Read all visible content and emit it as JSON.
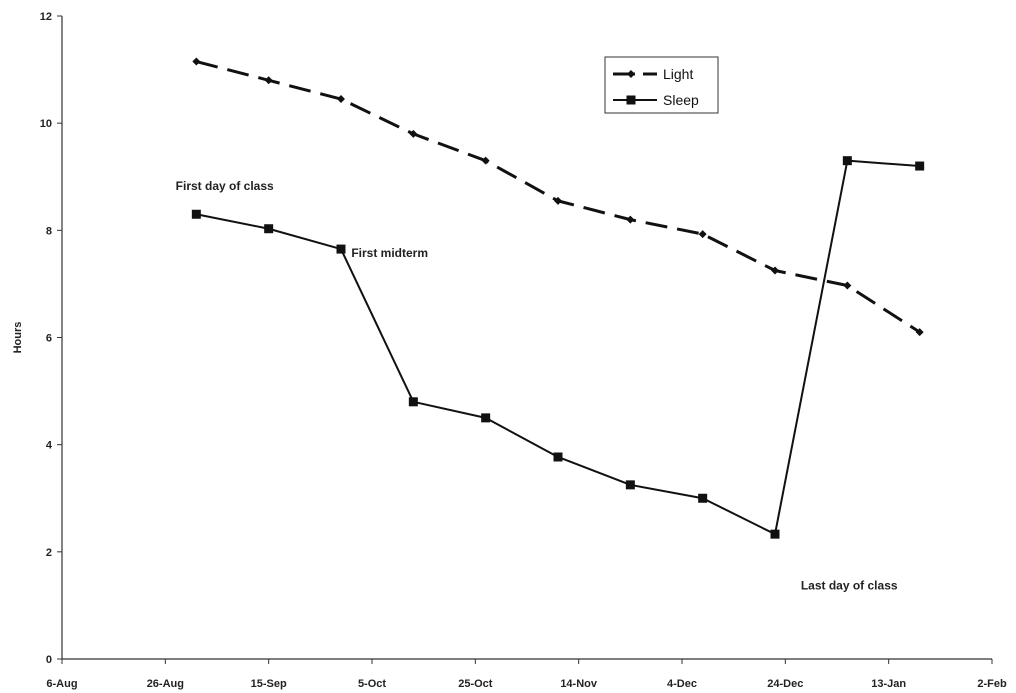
{
  "chart_data": {
    "type": "line",
    "title": "",
    "xlabel": "",
    "ylabel": "Hours",
    "ylim": [
      0,
      12
    ],
    "xlim": [
      "2008-08-06",
      "2009-02-02"
    ],
    "yticks": [
      0,
      2,
      4,
      6,
      8,
      10,
      12
    ],
    "xticks": [
      "6-Aug",
      "26-Aug",
      "15-Sep",
      "5-Oct",
      "25-Oct",
      "14-Nov",
      "4-Dec",
      "24-Dec",
      "13-Jan",
      "2-Feb"
    ],
    "grid": false,
    "legend_position": "top-right",
    "series": [
      {
        "name": "Light",
        "style": "dashed",
        "marker": "diamond",
        "color": "#111111",
        "points": [
          {
            "x": "2008-09-01",
            "y": 11.15
          },
          {
            "x": "2008-09-15",
            "y": 10.8
          },
          {
            "x": "2008-09-29",
            "y": 10.45
          },
          {
            "x": "2008-10-13",
            "y": 9.8
          },
          {
            "x": "2008-10-27",
            "y": 9.3
          },
          {
            "x": "2008-11-10",
            "y": 8.55
          },
          {
            "x": "2008-11-24",
            "y": 8.2
          },
          {
            "x": "2008-12-08",
            "y": 7.93
          },
          {
            "x": "2008-12-22",
            "y": 7.25
          },
          {
            "x": "2009-01-05",
            "y": 6.97
          },
          {
            "x": "2009-01-19",
            "y": 6.1
          }
        ]
      },
      {
        "name": "Sleep",
        "style": "solid",
        "marker": "square",
        "color": "#111111",
        "points": [
          {
            "x": "2008-09-01",
            "y": 8.3
          },
          {
            "x": "2008-09-15",
            "y": 8.03
          },
          {
            "x": "2008-09-29",
            "y": 7.65
          },
          {
            "x": "2008-10-13",
            "y": 4.8
          },
          {
            "x": "2008-10-27",
            "y": 4.5
          },
          {
            "x": "2008-11-10",
            "y": 3.77
          },
          {
            "x": "2008-11-24",
            "y": 3.25
          },
          {
            "x": "2008-12-08",
            "y": 3.0
          },
          {
            "x": "2008-12-22",
            "y": 2.33
          },
          {
            "x": "2009-01-05",
            "y": 9.3
          },
          {
            "x": "2009-01-19",
            "y": 9.2
          }
        ]
      }
    ],
    "annotations": [
      {
        "text": "First day of class",
        "x": "2008-08-28",
        "y": 8.75
      },
      {
        "text": "First midterm",
        "x": "2008-10-01",
        "y": 7.5
      },
      {
        "text": "Last day of class",
        "x": "2008-12-27",
        "y": 1.3
      }
    ]
  }
}
